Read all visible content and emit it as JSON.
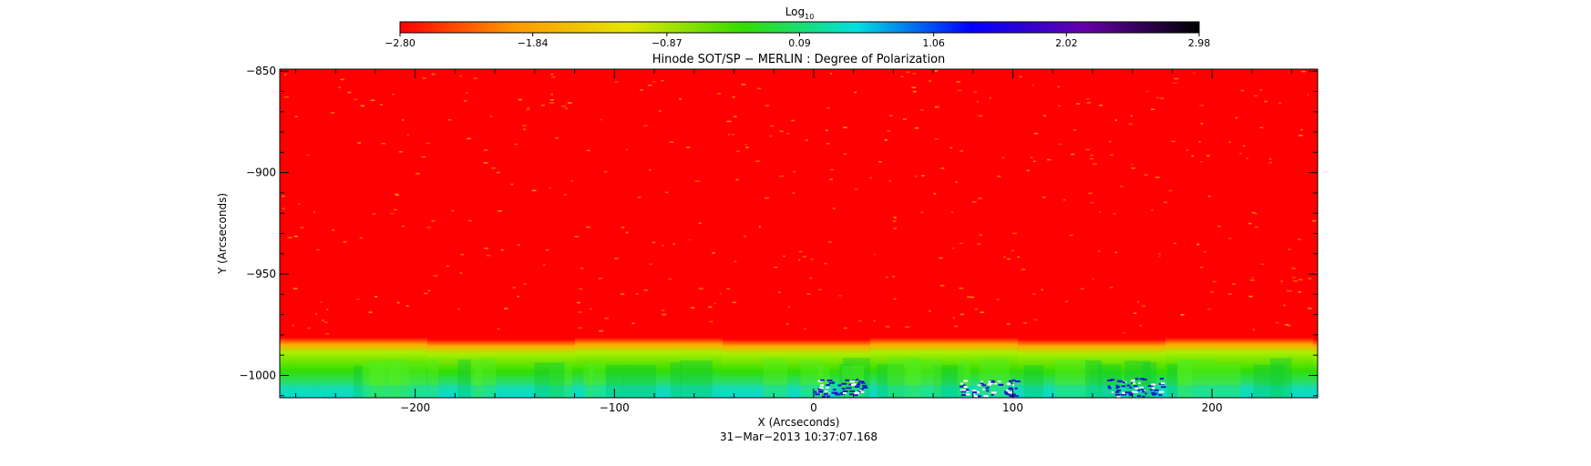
{
  "chart_data": {
    "type": "heatmap",
    "title": "Hinode SOT/SP − MERLIN : Degree of Polarization",
    "subtitle": "31−Mar−2013 10:37:07.168",
    "xlabel": "X (Arcseconds)",
    "ylabel": "Y (Arcseconds)",
    "xlim": [
      -268,
      253
    ],
    "ylim": [
      -1011,
      -849
    ],
    "x_ticks": [
      -200,
      -100,
      0,
      100,
      200
    ],
    "x_tick_labels": [
      "−200",
      "−100",
      "0",
      "100",
      "200"
    ],
    "y_ticks": [
      -850,
      -900,
      -950,
      -1000
    ],
    "y_tick_labels": [
      "−850",
      "−900",
      "−950",
      "−1000"
    ],
    "colorbar": {
      "label_base": "Log",
      "label_sub": "10",
      "range": [
        -2.8,
        2.98
      ],
      "tick_values": [
        -2.8,
        -1.84,
        -0.87,
        0.09,
        1.06,
        2.02,
        2.98
      ],
      "tick_labels": [
        "−2.80",
        "−1.84",
        "−0.87",
        "0.09",
        "1.06",
        "2.02",
        "2.98"
      ],
      "colormap": [
        "#ff0000",
        "#ff9900",
        "#e6e600",
        "#33dd00",
        "#00e0e0",
        "#0000ff",
        "#6600aa",
        "#000000"
      ]
    },
    "limb_y": -983,
    "field_value": -2.8,
    "limb_value": 0.09
  }
}
